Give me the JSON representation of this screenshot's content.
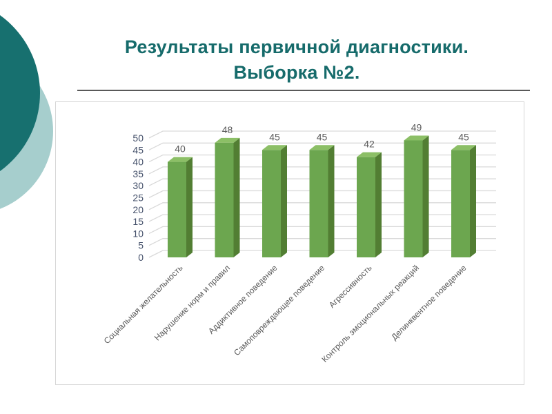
{
  "slide": {
    "title": {
      "line1": "Результаты первичной диагностики.",
      "line2": "Выборка №2.",
      "color": "#166b6b"
    },
    "divider_color": "#595959",
    "decor": {
      "dark_circle_color": "#17706f",
      "light_circle_color": "#a6cecd"
    }
  },
  "chart_data": {
    "type": "bar",
    "style": "3d-column",
    "title": "",
    "xlabel": "",
    "ylabel": "",
    "categories": [
      "Социальная желательность",
      "Нарушение норм и правил",
      "Аддиктивное поведение",
      "Самоповреждающее поведение",
      "Агрессивность",
      "Контроль эмоциональных реакций",
      "Делинквентное поведение"
    ],
    "values": [
      40,
      48,
      45,
      45,
      42,
      49,
      45
    ],
    "ylim": [
      0,
      50
    ],
    "ytick_step": 5,
    "yticks": [
      0,
      5,
      10,
      15,
      20,
      25,
      30,
      35,
      40,
      45,
      50
    ],
    "grid": true,
    "legend": "none",
    "colors": {
      "bar_front": "#6ca64f",
      "bar_top": "#8cbf66",
      "bar_side": "#527e33",
      "grid": "#d9d9d9",
      "value_label": "#595959",
      "category_label": "#595959",
      "axis_tick_label": "#44506a",
      "chart_border": "#d6d6d6"
    }
  }
}
